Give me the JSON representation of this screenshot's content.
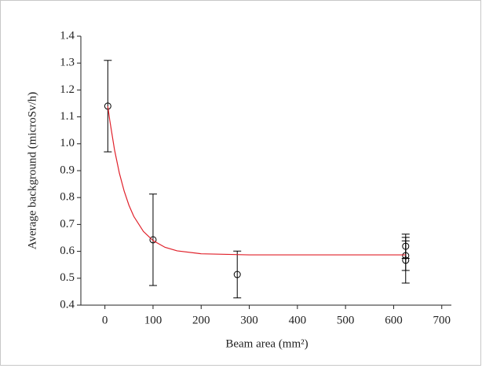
{
  "chart_data": {
    "type": "scatter",
    "xlabel": "Beam area (mm²)",
    "ylabel": "Average background (microSv/h)",
    "xlim": [
      -50,
      720
    ],
    "xticks": [
      0,
      100,
      200,
      300,
      400,
      500,
      600,
      700
    ],
    "ylim": [
      0.4,
      1.4
    ],
    "yticks": [
      0.4,
      0.5,
      0.6,
      0.7,
      0.8,
      0.9,
      {
        "value": 1,
        "label": "1.0"
      },
      1.1,
      1.2,
      1.3,
      1.4
    ],
    "series": [
      {
        "kind": "points",
        "color": "#000000",
        "x": [
          6,
          100,
          275,
          625,
          625,
          625
        ],
        "values": [
          1.14,
          0.643,
          0.514,
          0.619,
          0.584,
          0.567
        ],
        "errors": [
          0.17,
          0.17,
          0.087,
          0.045,
          0.055,
          0.085
        ]
      },
      {
        "kind": "fit",
        "color": "#e0202a",
        "x": [
          6,
          10,
          20,
          30,
          40,
          50,
          60,
          80,
          100,
          125,
          150,
          200,
          300,
          400,
          500,
          625
        ],
        "values": [
          1.14,
          1.088,
          0.977,
          0.891,
          0.824,
          0.771,
          0.73,
          0.674,
          0.64,
          0.615,
          0.602,
          0.591,
          0.587,
          0.587,
          0.587,
          0.587
        ]
      }
    ]
  }
}
